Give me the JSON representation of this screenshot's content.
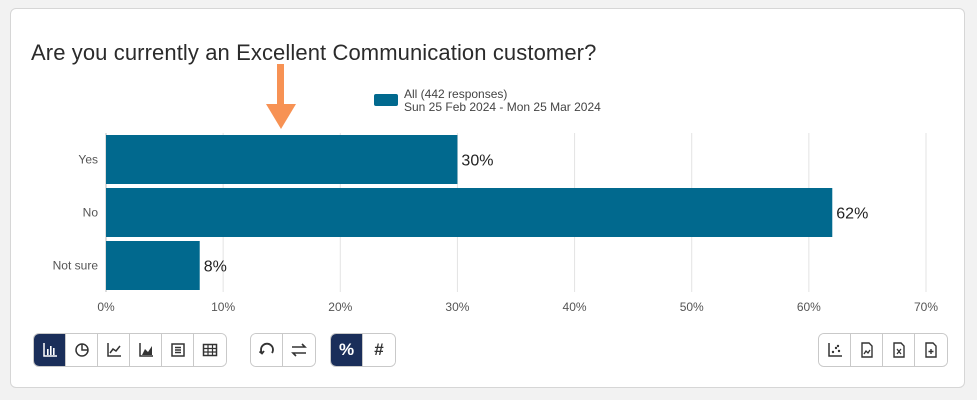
{
  "title": "Are you currently an Excellent Communication customer?",
  "colors": {
    "bar": "#01698e",
    "arrow": "#f79254",
    "active_button": "#1a2e5a",
    "grid": "#e3e3e3"
  },
  "chart_data": {
    "type": "bar",
    "orientation": "horizontal",
    "categories": [
      "Yes",
      "No",
      "Not sure"
    ],
    "series": [
      {
        "name": "All (442 responses)",
        "values": [
          30,
          62,
          8
        ]
      }
    ],
    "data_labels": [
      "30%",
      "62%",
      "8%"
    ],
    "legend": {
      "label": "All (442 responses)",
      "sublabel": "Sun 25 Feb 2024 - Mon 25 Mar 2024",
      "position": "top-center"
    },
    "x_ticks": [
      "0%",
      "10%",
      "20%",
      "30%",
      "40%",
      "50%",
      "60%",
      "70%"
    ],
    "xlim": [
      0,
      70
    ],
    "xlabel": "",
    "ylabel": "",
    "grid": true
  },
  "annotations": {
    "arrow_icon": "down-arrow-icon"
  },
  "toolbar": {
    "chart_types": [
      {
        "name": "bar-chart-icon",
        "active": true
      },
      {
        "name": "pie-chart-icon",
        "active": false
      },
      {
        "name": "line-chart-icon",
        "active": false
      },
      {
        "name": "area-chart-icon",
        "active": false
      },
      {
        "name": "list-icon",
        "active": false
      },
      {
        "name": "table-icon",
        "active": false
      }
    ],
    "transforms": [
      {
        "name": "refresh-icon"
      },
      {
        "name": "swap-icon"
      }
    ],
    "value_modes": [
      {
        "label": "%",
        "active": true
      },
      {
        "label": "#",
        "active": false
      }
    ],
    "exports": [
      {
        "name": "scatter-export-icon"
      },
      {
        "name": "image-export-icon"
      },
      {
        "name": "excel-export-icon"
      },
      {
        "name": "add-document-icon"
      }
    ]
  }
}
